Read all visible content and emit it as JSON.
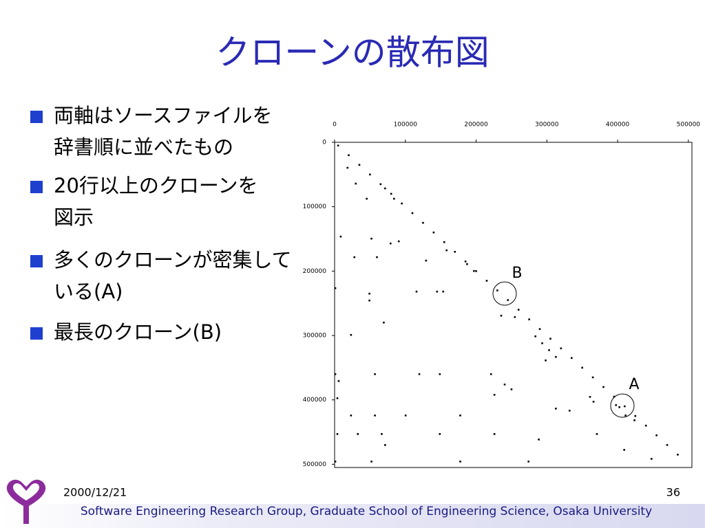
{
  "header": {
    "title": "クローンの散布図"
  },
  "bullets": [
    [
      "両軸はソースファイルを",
      "辞書順に並べたもの"
    ],
    [
      "20行以上のクローンを",
      "図示"
    ],
    [
      "多くのクローンが密集して",
      "いる(A)"
    ],
    [
      "最長のクローン(B)"
    ]
  ],
  "chart_data": {
    "type": "scatter",
    "xlim": [
      0,
      505000
    ],
    "ylim": [
      0,
      505000
    ],
    "y_inverted": true,
    "x_axis_position": "top",
    "xticks": [
      0,
      100000,
      200000,
      300000,
      400000,
      500000
    ],
    "yticks": [
      0,
      100000,
      200000,
      300000,
      400000,
      500000
    ],
    "color": "#000000",
    "annotations": [
      "B",
      "A"
    ],
    "x": [
      5000,
      20000,
      35000,
      50000,
      65000,
      80000,
      95000,
      110000,
      125000,
      140000,
      155000,
      170000,
      185000,
      200000,
      215000,
      230000,
      245000,
      260000,
      275000,
      290000,
      305000,
      320000,
      335000,
      350000,
      365000,
      380000,
      395000,
      410000,
      425000,
      440000,
      455000,
      470000,
      485000,
      18300,
      29900,
      45400,
      71400,
      84000,
      8700,
      52100,
      79100,
      90700,
      28000,
      59800,
      129300,
      1000,
      49200,
      49200,
      115800,
      144800,
      153500,
      69500,
      23200,
      283800,
      293400,
      303100,
      312700,
      298300,
      1000,
      5800,
      57000,
      119700,
      148700,
      221100,
      240400,
      250000,
      3900,
      225900,
      361000,
      365900,
      23200,
      57000,
      100400,
      177600,
      312700,
      332100,
      3900,
      32800,
      66600,
      148700,
      225900,
      288600,
      370700,
      71400,
      409300,
      1000,
      52100,
      177600,
      274100,
      447900,
      235500,
      254800,
      196900,
      187300,
      158300,
      411200,
      423800,
      397700,
      402500
    ],
    "values": [
      5000,
      20000,
      35000,
      50000,
      65000,
      80000,
      95000,
      110000,
      125000,
      140000,
      155000,
      170000,
      185000,
      200000,
      215000,
      230000,
      245000,
      260000,
      275000,
      290000,
      305000,
      320000,
      335000,
      350000,
      365000,
      380000,
      395000,
      410000,
      425000,
      440000,
      455000,
      470000,
      485000,
      39500,
      64100,
      87600,
      71600,
      87600,
      146400,
      149600,
      157100,
      153800,
      178400,
      178400,
      183700,
      226500,
      235000,
      245700,
      231800,
      231800,
      231800,
      279900,
      299100,
      301300,
      312000,
      322700,
      333300,
      338700,
      360000,
      370700,
      360000,
      360000,
      360000,
      360000,
      376100,
      383600,
      397400,
      392100,
      395300,
      402800,
      424200,
      424200,
      424200,
      424200,
      413500,
      416700,
      453000,
      453000,
      453000,
      453000,
      453000,
      461500,
      453000,
      470100,
      477600,
      495700,
      495700,
      495700,
      495700,
      491500,
      269200,
      271400,
      199800,
      189100,
      167700,
      424200,
      431600,
      408100,
      411300
    ]
  },
  "footer": {
    "date": "2000/12/21",
    "page": "36",
    "organization": "Software Engineering Research Group, Graduate School of Engineering Science, Osaka University"
  }
}
